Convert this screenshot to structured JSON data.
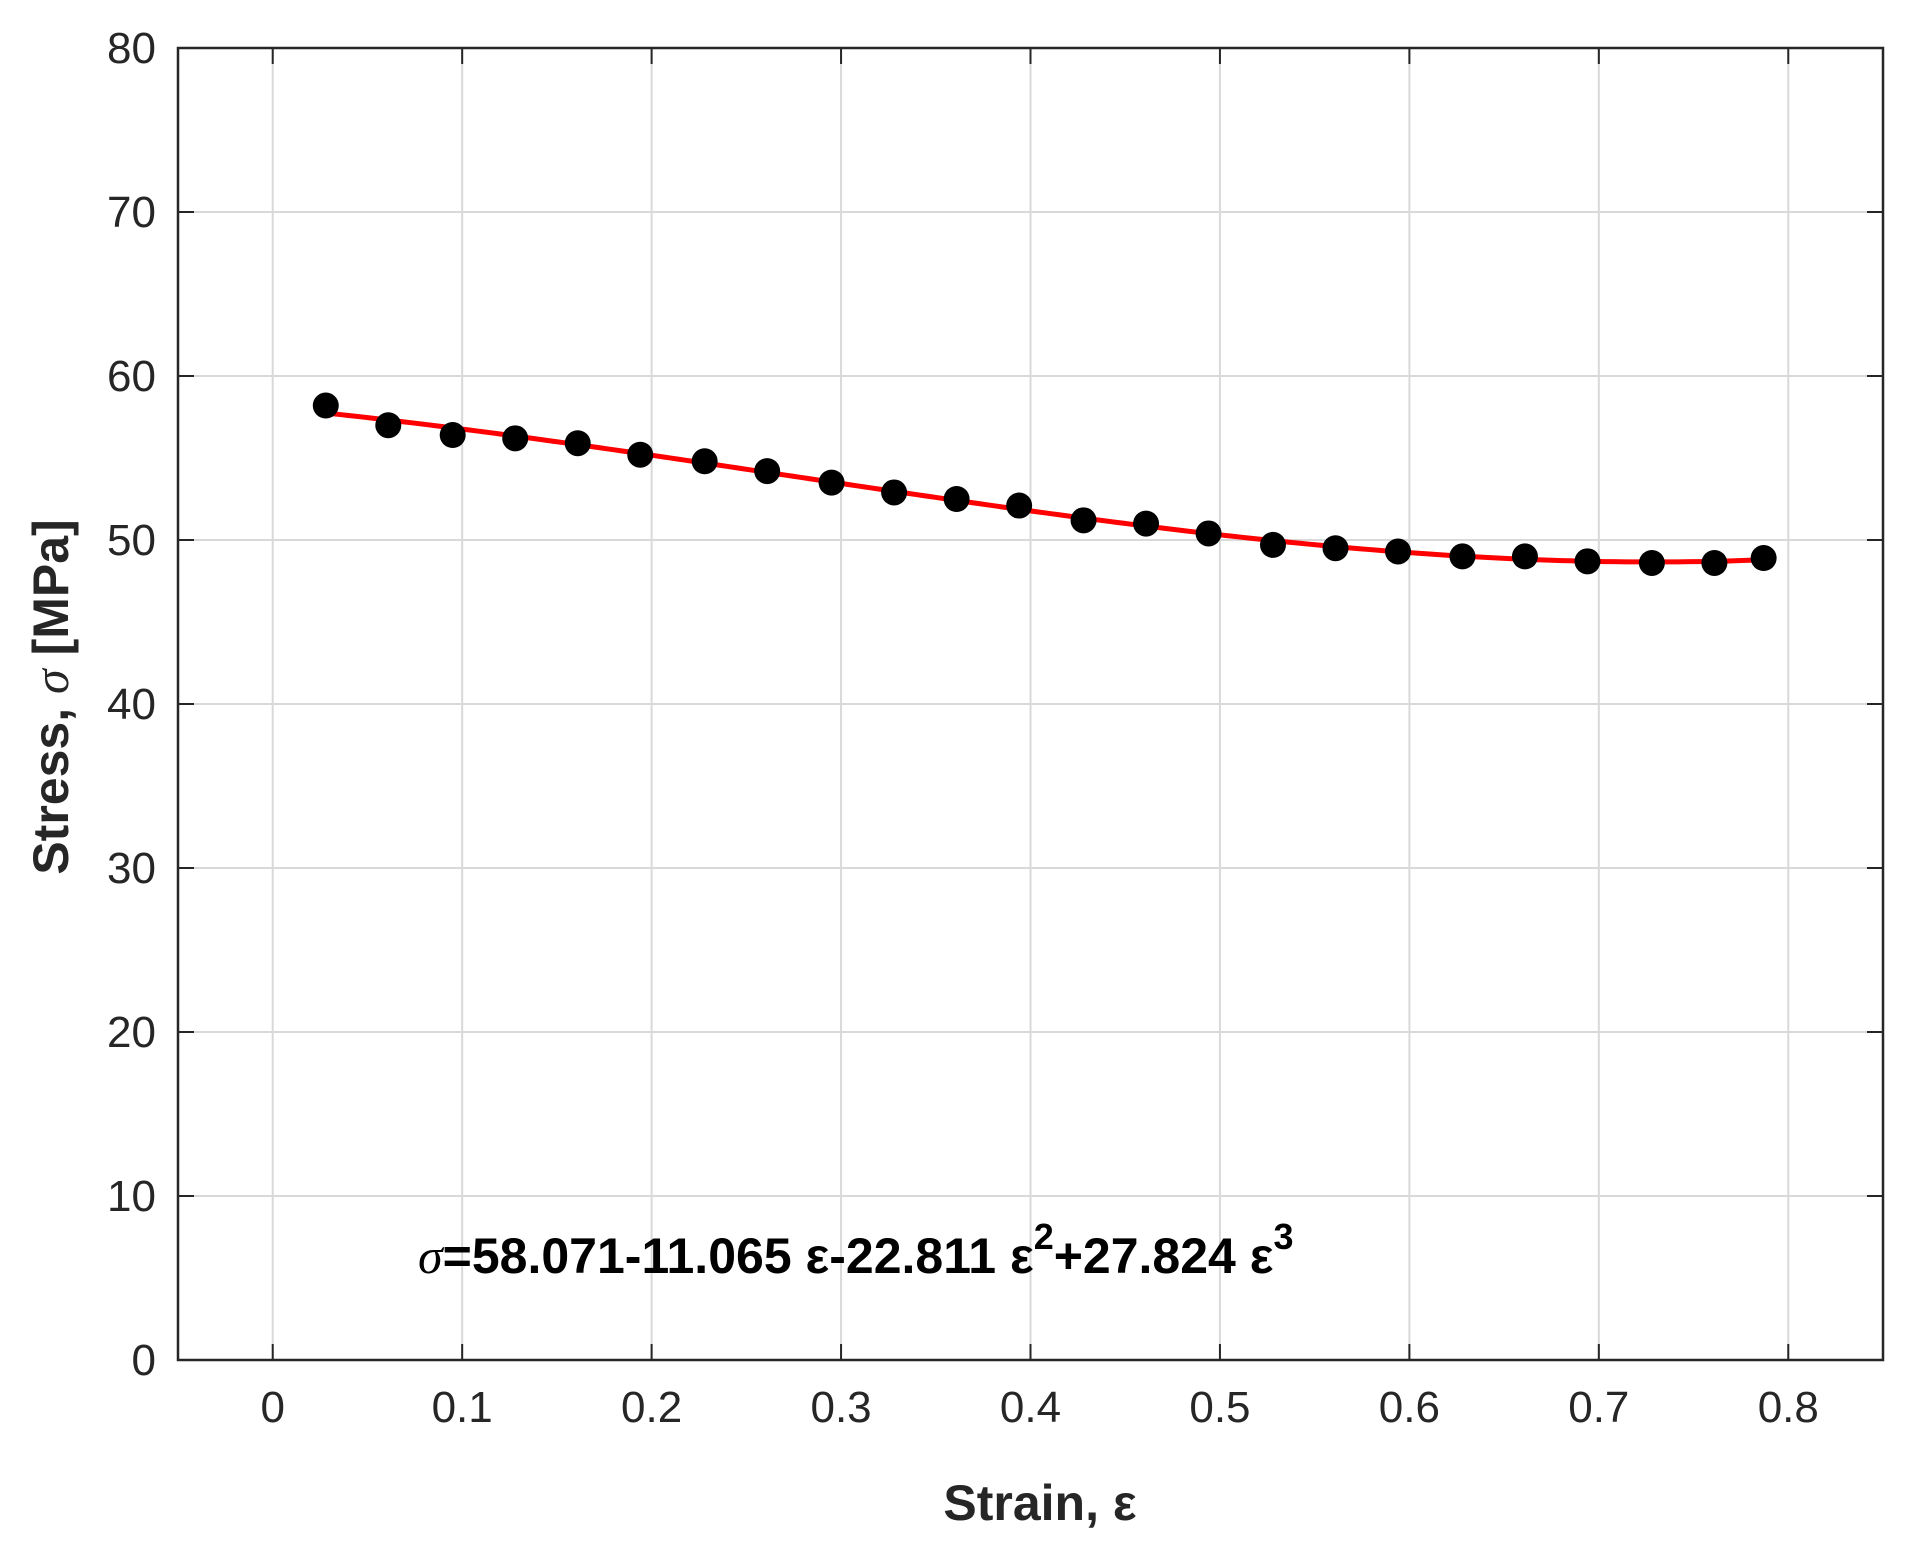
{
  "chart_data": {
    "type": "scatter",
    "xlabel": "Strain, ε",
    "ylabel_prefix": "Stress, ",
    "ylabel_symbol": "σ",
    "ylabel_suffix": " [MPa]",
    "xlim": [
      -0.05,
      0.85
    ],
    "ylim": [
      0,
      80
    ],
    "xticks": [
      0,
      0.1,
      0.2,
      0.3,
      0.4,
      0.5,
      0.6,
      0.7,
      0.8
    ],
    "xtick_labels": [
      "0",
      "0.1",
      "0.2",
      "0.3",
      "0.4",
      "0.5",
      "0.6",
      "0.7",
      "0.8"
    ],
    "yticks": [
      0,
      10,
      20,
      30,
      40,
      50,
      60,
      70,
      80
    ],
    "ytick_labels": [
      "0",
      "10",
      "20",
      "30",
      "40",
      "50",
      "60",
      "70",
      "80"
    ],
    "grid": true,
    "series": [
      {
        "type": "scatter",
        "color": "#000000",
        "x": [
          0.028,
          0.061,
          0.095,
          0.128,
          0.161,
          0.194,
          0.228,
          0.261,
          0.295,
          0.328,
          0.361,
          0.394,
          0.428,
          0.461,
          0.494,
          0.528,
          0.561,
          0.594,
          0.628,
          0.661,
          0.694,
          0.728,
          0.761,
          0.787
        ],
        "y": [
          58.2,
          57.0,
          56.4,
          56.2,
          55.9,
          55.2,
          54.8,
          54.2,
          53.5,
          52.9,
          52.5,
          52.1,
          51.2,
          51.0,
          50.4,
          49.7,
          49.5,
          49.3,
          49.0,
          49.0,
          48.7,
          48.6,
          48.6,
          48.9
        ]
      },
      {
        "type": "line",
        "color": "#ff0000",
        "fit_coefficients": [
          58.071,
          -11.065,
          -22.811,
          27.824
        ],
        "x_range": [
          0.028,
          0.787
        ]
      }
    ],
    "annotation": {
      "symbol": "σ",
      "text_main": "=58.071-11.065 ε-22.811 ε",
      "sup1": "2",
      "text_mid": "+27.824 ε",
      "sup2": "3"
    }
  }
}
